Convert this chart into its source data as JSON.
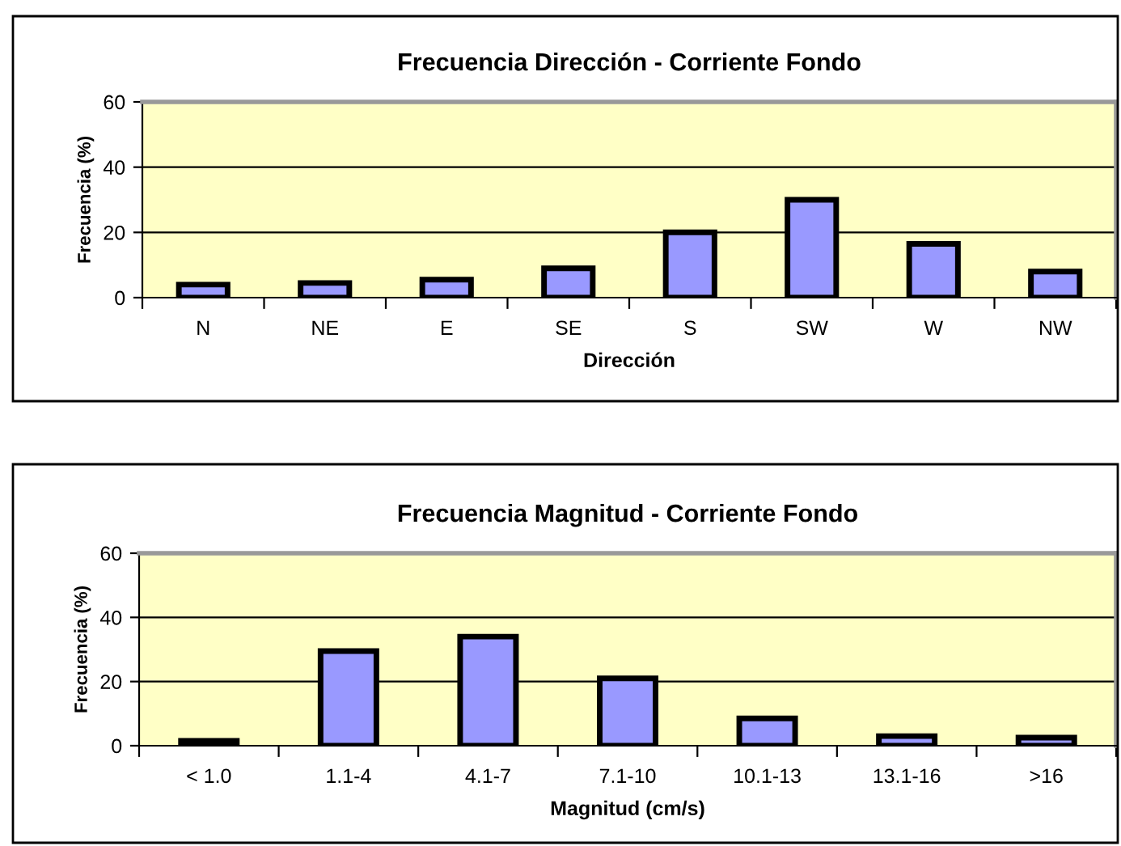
{
  "chart_data": [
    {
      "type": "bar",
      "title": "Frecuencia Dirección - Corriente Fondo",
      "xlabel": "Dirección",
      "ylabel": "Frecuencia (%)",
      "categories": [
        "N",
        "NE",
        "E",
        "SE",
        "S",
        "SW",
        "W",
        "NW"
      ],
      "values": [
        4,
        4.5,
        5.5,
        9,
        20,
        30,
        16.5,
        8
      ],
      "color": "#9999ff",
      "ylim": [
        0,
        60
      ],
      "yticks": [
        0,
        20,
        40,
        60
      ],
      "grid": "y",
      "legend": false
    },
    {
      "type": "bar",
      "title": "Frecuencia Magnitud - Corriente Fondo",
      "xlabel": "Magnitud (cm/s)",
      "ylabel": "Frecuencia (%)",
      "categories": [
        "< 1.0",
        "1.1-4",
        "4.1-7",
        "7.1-10",
        "10.1-13",
        "13.1-16",
        ">16"
      ],
      "values": [
        1.5,
        29.5,
        34,
        21,
        8.5,
        3,
        2.5
      ],
      "color": "#9999ff",
      "ylim": [
        0,
        60
      ],
      "yticks": [
        0,
        20,
        40,
        60
      ],
      "grid": "y",
      "legend": false
    }
  ]
}
